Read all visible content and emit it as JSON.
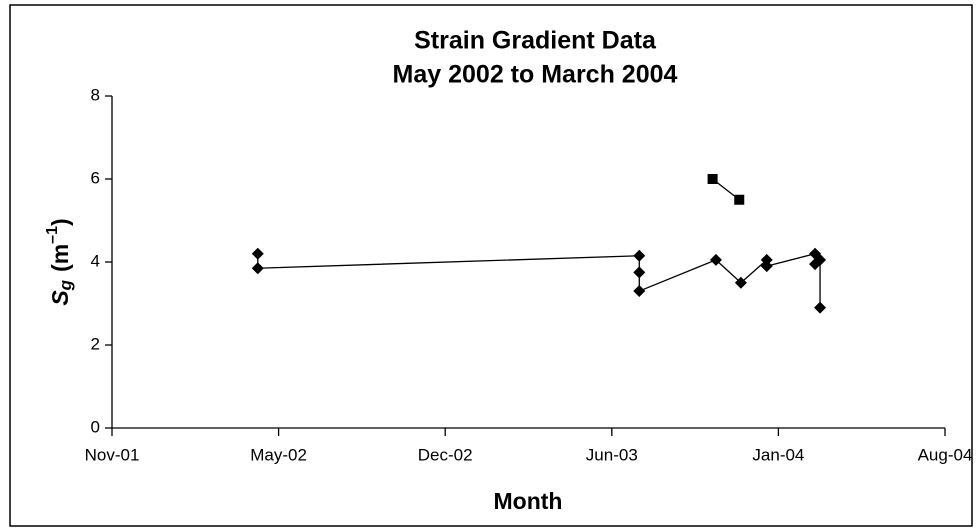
{
  "chart_data": {
    "type": "scatter",
    "title": [
      "Strain Gradient Data",
      "May 2002 to March 2004"
    ],
    "xlabel": "Month",
    "ylabel": {
      "symbol": "S",
      "subscript": "g",
      "unit": "(m",
      "exponent": "–1",
      "close": ")"
    },
    "xlim": [
      37200,
      38200
    ],
    "xticks": [
      {
        "value": 37200,
        "label": "Nov-01"
      },
      {
        "value": 37400,
        "label": "May-02"
      },
      {
        "value": 37600,
        "label": "Dec-02"
      },
      {
        "value": 37800,
        "label": "Jun-03"
      },
      {
        "value": 38000,
        "label": "Jan-04"
      },
      {
        "value": 38200,
        "label": "Aug-04"
      }
    ],
    "ylim": [
      0,
      8
    ],
    "yticks": [
      0,
      2,
      4,
      6,
      8
    ],
    "series": [
      {
        "marker": "diamond",
        "line": true,
        "color": "#000000",
        "x": [
          37375,
          37375,
          37833,
          37833,
          37833,
          37925,
          37955,
          37986,
          37986,
          38044,
          38044,
          38050,
          38050
        ],
        "values": [
          4.2,
          3.85,
          4.15,
          3.75,
          3.3,
          4.05,
          3.5,
          4.05,
          3.9,
          4.2,
          3.95,
          4.05,
          2.9
        ]
      },
      {
        "marker": "square",
        "line": true,
        "color": "#000000",
        "x": [
          37921,
          37953
        ],
        "values": [
          6.0,
          5.5
        ]
      }
    ]
  }
}
